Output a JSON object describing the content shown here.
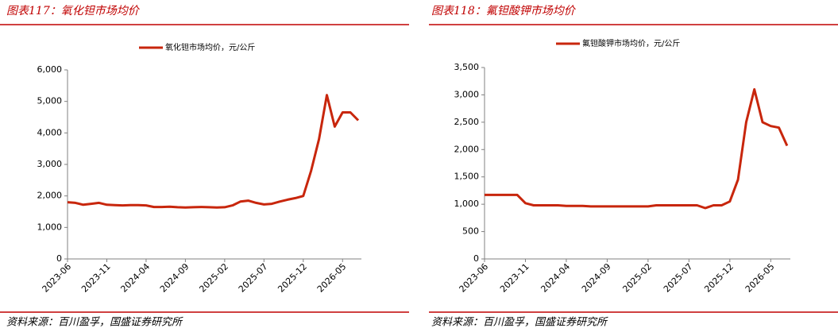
{
  "chart_data": [
    {
      "type": "line",
      "title": "图表117：氧化钽市场均价",
      "source": "资料来源：百川盈孚，国盛证券研究所",
      "categories": [
        "2023-06",
        null,
        null,
        null,
        null,
        "2023-11",
        null,
        null,
        null,
        null,
        "2024-04",
        null,
        null,
        null,
        null,
        "2024-09",
        null,
        null,
        null,
        null,
        "2025-02",
        null,
        null,
        null,
        null,
        "2025-07",
        null,
        null,
        null,
        null,
        "2025-12",
        null,
        null,
        null,
        null,
        "2026-05",
        null,
        null
      ],
      "series": [
        {
          "name": "氧化钽市场均价，元/公斤",
          "color": "#c8260c",
          "values": [
            1800,
            1780,
            1720,
            1750,
            1780,
            1720,
            1710,
            1700,
            1710,
            1710,
            1700,
            1650,
            1650,
            1660,
            1640,
            1630,
            1640,
            1650,
            1640,
            1630,
            1640,
            1700,
            1820,
            1850,
            1780,
            1730,
            1750,
            1820,
            1880,
            1930,
            2000,
            2800,
            3800,
            5200,
            4200,
            4650,
            4650,
            4400
          ]
        }
      ],
      "ylim": [
        0,
        6000
      ],
      "yticks": [
        0,
        {
          "value": 1000,
          "label": "1,000"
        },
        {
          "value": 2000,
          "label": "2,000"
        },
        {
          "value": 3000,
          "label": "3,000"
        },
        {
          "value": 4000,
          "label": "4,000"
        },
        {
          "value": 5000,
          "label": "5,000"
        },
        {
          "value": 6000,
          "label": "6,000"
        }
      ],
      "grid": false
    },
    {
      "type": "line",
      "title": "图表118：氟钽酸钾市场均价",
      "source": "资料来源：百川盈孚，国盛证券研究所",
      "categories": [
        "2023-06",
        null,
        null,
        null,
        null,
        "2023-11",
        null,
        null,
        null,
        null,
        "2024-04",
        null,
        null,
        null,
        null,
        "2024-09",
        null,
        null,
        null,
        null,
        "2025-02",
        null,
        null,
        null,
        null,
        "2025-07",
        null,
        null,
        null,
        null,
        "2025-12",
        null,
        null,
        null,
        null,
        "2026-05",
        null,
        null
      ],
      "series": [
        {
          "name": "氟钽酸钾市场均价，元/公斤",
          "color": "#c8260c",
          "values": [
            1170,
            1170,
            1170,
            1170,
            1170,
            1020,
            980,
            980,
            980,
            980,
            970,
            970,
            970,
            960,
            960,
            960,
            960,
            960,
            960,
            960,
            960,
            980,
            980,
            980,
            980,
            980,
            980,
            930,
            980,
            980,
            1050,
            1450,
            2500,
            3100,
            2500,
            2430,
            2400,
            2070
          ]
        }
      ],
      "ylim": [
        0,
        3500
      ],
      "yticks": [
        0,
        500,
        {
          "value": 1000,
          "label": "1,000"
        },
        {
          "value": 1500,
          "label": "1,500"
        },
        {
          "value": 2000,
          "label": "2,000"
        },
        {
          "value": 2500,
          "label": "2,500"
        },
        {
          "value": 3000,
          "label": "3,000"
        },
        {
          "value": 3500,
          "label": "3,500"
        }
      ],
      "grid": false
    }
  ]
}
